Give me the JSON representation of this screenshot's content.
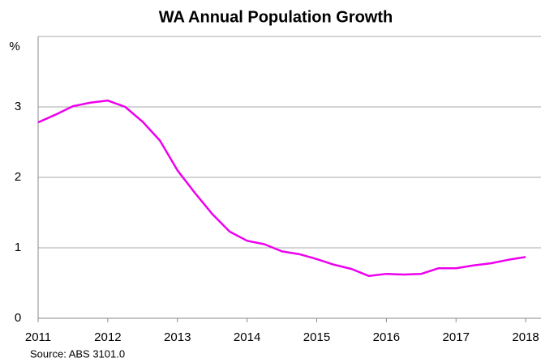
{
  "chart_data": {
    "type": "line",
    "title": "WA Annual Population Growth",
    "y_label": "%",
    "source": "Source: ABS 3101.0",
    "x": [
      2011,
      2011.25,
      2011.5,
      2011.75,
      2012,
      2012.25,
      2012.5,
      2012.75,
      2013,
      2013.25,
      2013.5,
      2013.75,
      2014,
      2014.25,
      2014.5,
      2014.75,
      2015,
      2015.25,
      2015.5,
      2015.75,
      2016,
      2016.25,
      2016.5,
      2016.75,
      2017,
      2017.25,
      2017.5,
      2017.75,
      2018
    ],
    "series": [
      {
        "color": "#ee00ee",
        "values": [
          2.78,
          2.89,
          3.01,
          3.06,
          3.09,
          3.0,
          2.79,
          2.52,
          2.1,
          1.78,
          1.48,
          1.23,
          1.1,
          1.05,
          0.95,
          0.91,
          0.84,
          0.76,
          0.7,
          0.6,
          0.63,
          0.62,
          0.63,
          0.71,
          0.71,
          0.75,
          0.78,
          0.83,
          0.87
        ]
      }
    ],
    "xlim": [
      2011,
      2018.22
    ],
    "xticks": [
      2011,
      2012,
      2013,
      2014,
      2015,
      2016,
      2017,
      2018
    ],
    "ylim": [
      0,
      4
    ],
    "yticks": [
      0,
      1,
      2,
      3
    ],
    "grid": true
  }
}
